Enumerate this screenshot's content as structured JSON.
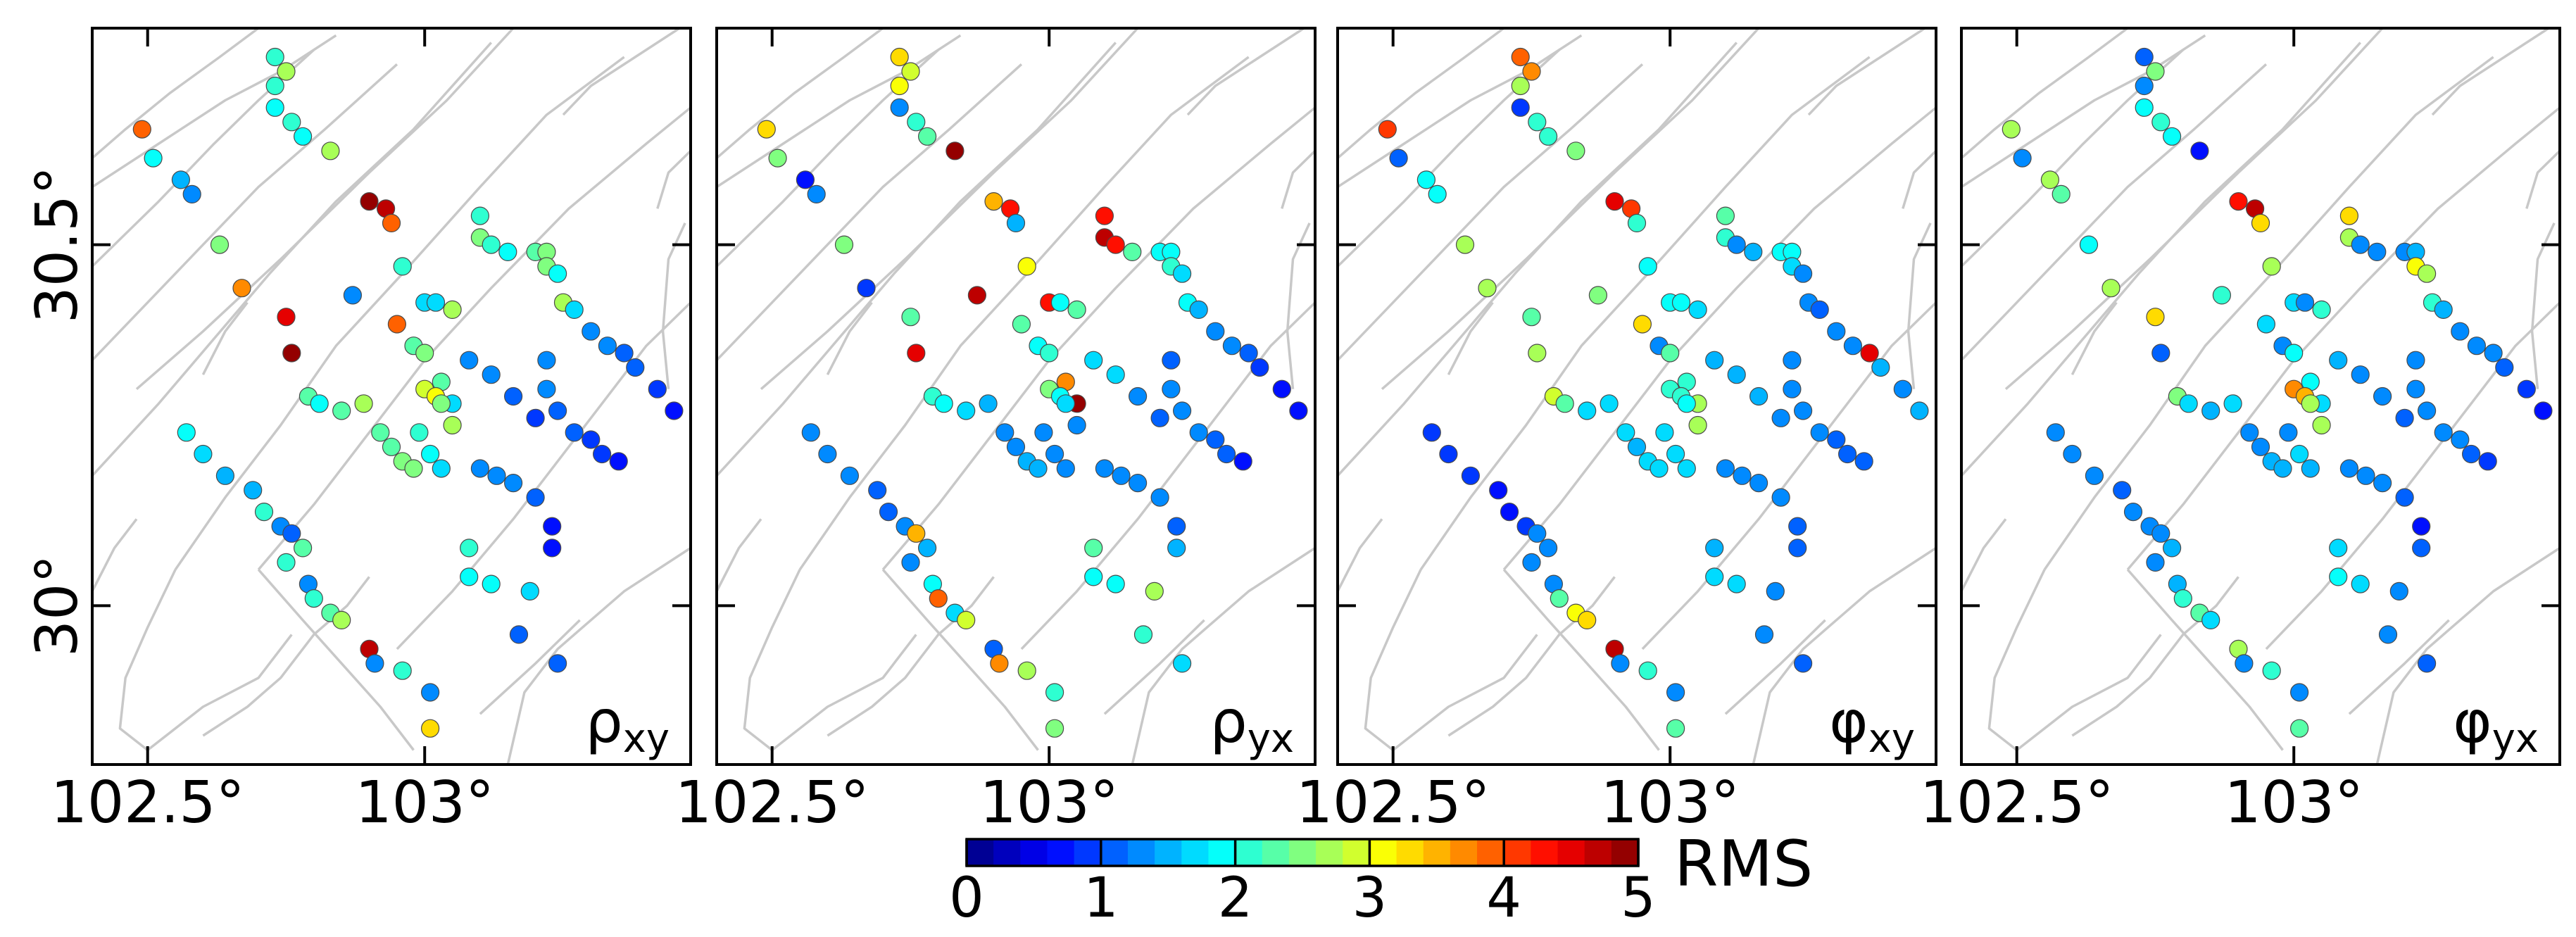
{
  "figure": {
    "panel_labels": [
      {
        "base": "ρ",
        "sub": "xy"
      },
      {
        "base": "ρ",
        "sub": "yx"
      },
      {
        "base": "φ",
        "sub": "xy"
      },
      {
        "base": "φ",
        "sub": "yx"
      }
    ]
  },
  "chart_data": {
    "type": "scatter",
    "title": "",
    "description_units": "station RMS misfit maps",
    "xlabel": "",
    "ylabel": "",
    "xlim": [
      102.4,
      103.48
    ],
    "ylim": [
      29.78,
      30.8
    ],
    "x_ticks": [
      102.5,
      103.0
    ],
    "x_tick_labels": [
      "102.5°",
      "103°"
    ],
    "y_ticks": [
      30.0,
      30.5
    ],
    "y_tick_labels": [
      "30°",
      "30.5°"
    ],
    "colorbar": {
      "label": "RMS",
      "range": [
        0,
        5
      ],
      "ticks": [
        0,
        1,
        2,
        3,
        4,
        5
      ],
      "tick_labels": [
        "0",
        "1",
        "2",
        "3",
        "4",
        "5"
      ],
      "steps": 25,
      "colormap": "jet"
    },
    "stations": [
      [
        102.73,
        30.76
      ],
      [
        102.75,
        30.74
      ],
      [
        102.73,
        30.72
      ],
      [
        102.73,
        30.69
      ],
      [
        102.76,
        30.67
      ],
      [
        102.78,
        30.65
      ],
      [
        102.49,
        30.66
      ],
      [
        102.51,
        30.62
      ],
      [
        102.56,
        30.59
      ],
      [
        102.58,
        30.57
      ],
      [
        102.63,
        30.5
      ],
      [
        102.67,
        30.44
      ],
      [
        102.75,
        30.4
      ],
      [
        102.76,
        30.35
      ],
      [
        102.79,
        30.29
      ],
      [
        102.81,
        30.28
      ],
      [
        102.85,
        30.27
      ],
      [
        102.89,
        30.28
      ],
      [
        102.92,
        30.24
      ],
      [
        102.94,
        30.22
      ],
      [
        102.96,
        30.2
      ],
      [
        102.98,
        30.19
      ],
      [
        102.83,
        30.63
      ],
      [
        102.9,
        30.56
      ],
      [
        102.93,
        30.55
      ],
      [
        102.94,
        30.53
      ],
      [
        102.96,
        30.47
      ],
      [
        102.87,
        30.43
      ],
      [
        102.95,
        30.39
      ],
      [
        103.0,
        30.42
      ],
      [
        103.02,
        30.42
      ],
      [
        103.05,
        30.41
      ],
      [
        102.98,
        30.36
      ],
      [
        103.0,
        30.35
      ],
      [
        103.03,
        30.31
      ],
      [
        103.05,
        30.28
      ],
      [
        103.1,
        30.54
      ],
      [
        103.1,
        30.51
      ],
      [
        103.12,
        30.5
      ],
      [
        103.15,
        30.49
      ],
      [
        103.2,
        30.49
      ],
      [
        103.22,
        30.49
      ],
      [
        103.22,
        30.47
      ],
      [
        103.24,
        30.46
      ],
      [
        103.25,
        30.42
      ],
      [
        103.27,
        30.41
      ],
      [
        103.3,
        30.38
      ],
      [
        103.33,
        30.36
      ],
      [
        103.36,
        30.35
      ],
      [
        103.38,
        30.33
      ],
      [
        103.42,
        30.3
      ],
      [
        103.45,
        30.27
      ],
      [
        103.0,
        30.3
      ],
      [
        103.02,
        30.29
      ],
      [
        103.03,
        30.28
      ],
      [
        103.05,
        30.25
      ],
      [
        102.99,
        30.24
      ],
      [
        103.01,
        30.21
      ],
      [
        103.03,
        30.19
      ],
      [
        103.1,
        30.19
      ],
      [
        103.13,
        30.18
      ],
      [
        103.16,
        30.17
      ],
      [
        103.2,
        30.15
      ],
      [
        103.23,
        30.11
      ],
      [
        103.08,
        30.34
      ],
      [
        103.12,
        30.32
      ],
      [
        103.16,
        30.29
      ],
      [
        103.2,
        30.26
      ],
      [
        103.22,
        30.34
      ],
      [
        103.22,
        30.3
      ],
      [
        103.24,
        30.27
      ],
      [
        103.27,
        30.24
      ],
      [
        103.3,
        30.23
      ],
      [
        103.32,
        30.21
      ],
      [
        103.35,
        30.2
      ],
      [
        102.57,
        30.24
      ],
      [
        102.6,
        30.21
      ],
      [
        102.64,
        30.18
      ],
      [
        102.69,
        30.16
      ],
      [
        102.71,
        30.13
      ],
      [
        102.74,
        30.11
      ],
      [
        102.76,
        30.1
      ],
      [
        102.78,
        30.08
      ],
      [
        102.75,
        30.06
      ],
      [
        102.79,
        30.03
      ],
      [
        102.8,
        30.01
      ],
      [
        102.83,
        29.99
      ],
      [
        102.85,
        29.98
      ],
      [
        102.9,
        29.94
      ],
      [
        102.91,
        29.92
      ],
      [
        102.96,
        29.91
      ],
      [
        103.01,
        29.88
      ],
      [
        103.01,
        29.83
      ],
      [
        103.08,
        30.08
      ],
      [
        103.08,
        30.04
      ],
      [
        103.12,
        30.03
      ],
      [
        103.19,
        30.02
      ],
      [
        103.23,
        30.08
      ],
      [
        103.17,
        29.96
      ],
      [
        103.24,
        29.92
      ]
    ],
    "series": [
      {
        "name": "ρxy",
        "rms": [
          2.0,
          2.6,
          2.0,
          1.9,
          2.1,
          1.9,
          3.8,
          1.8,
          1.5,
          1.3,
          2.4,
          3.6,
          4.4,
          4.8,
          2.2,
          1.9,
          2.3,
          2.6,
          2.2,
          2.2,
          2.5,
          2.4,
          2.6,
          4.8,
          4.6,
          3.9,
          2.0,
          1.3,
          3.8,
          1.7,
          1.6,
          2.6,
          2.3,
          2.5,
          2.2,
          1.6,
          2.1,
          2.5,
          2.0,
          1.9,
          2.3,
          2.5,
          2.4,
          1.8,
          2.6,
          1.6,
          1.3,
          1.2,
          1.1,
          1.0,
          0.8,
          0.6,
          2.9,
          3.1,
          2.4,
          2.8,
          2.0,
          1.8,
          1.6,
          1.4,
          1.4,
          1.3,
          1.0,
          0.7,
          1.2,
          1.2,
          1.1,
          0.9,
          1.2,
          1.4,
          1.1,
          1.1,
          0.9,
          0.8,
          0.6,
          1.9,
          1.6,
          1.5,
          1.5,
          2.0,
          1.4,
          1.0,
          2.2,
          2.1,
          1.3,
          2.0,
          2.3,
          2.7,
          4.6,
          1.3,
          2.0,
          1.3,
          3.3,
          2.0,
          1.9,
          1.8,
          1.6,
          0.6,
          1.0,
          1.0
        ]
      },
      {
        "name": "ρyx",
        "rms": [
          3.3,
          2.9,
          3.1,
          1.4,
          2.1,
          2.2,
          3.2,
          2.5,
          0.7,
          1.2,
          2.4,
          0.8,
          2.3,
          4.5,
          2.0,
          1.8,
          1.6,
          1.5,
          1.3,
          1.4,
          1.5,
          1.5,
          4.8,
          3.5,
          4.3,
          1.5,
          3.1,
          4.6,
          2.3,
          4.3,
          1.8,
          2.2,
          1.8,
          2.1,
          3.6,
          4.8,
          4.3,
          4.6,
          4.3,
          2.2,
          1.8,
          1.9,
          2.0,
          1.7,
          1.8,
          1.5,
          1.4,
          1.2,
          1.0,
          0.9,
          0.7,
          0.6,
          2.5,
          1.9,
          1.7,
          1.4,
          1.3,
          1.2,
          1.3,
          1.2,
          1.3,
          1.4,
          1.2,
          1.1,
          1.6,
          1.6,
          1.3,
          1.1,
          1.1,
          1.2,
          1.4,
          1.3,
          1.1,
          1.0,
          0.7,
          1.4,
          1.2,
          1.3,
          1.0,
          1.0,
          1.3,
          3.4,
          1.5,
          1.3,
          1.9,
          3.9,
          1.6,
          2.9,
          1.0,
          3.6,
          2.6,
          2.0,
          2.4,
          2.3,
          1.8,
          1.9,
          2.8,
          1.5,
          2.0,
          1.7
        ]
      },
      {
        "name": "φxy",
        "rms": [
          3.9,
          3.6,
          2.6,
          0.8,
          2.1,
          2.0,
          4.0,
          1.1,
          1.8,
          1.9,
          2.6,
          2.7,
          2.2,
          2.6,
          2.9,
          2.2,
          1.7,
          1.7,
          1.6,
          1.5,
          1.7,
          1.7,
          2.4,
          4.5,
          4.0,
          2.1,
          1.9,
          2.4,
          3.3,
          1.9,
          1.8,
          1.6,
          1.3,
          2.2,
          2.0,
          2.7,
          2.3,
          2.0,
          1.3,
          1.5,
          1.9,
          1.8,
          1.7,
          1.3,
          1.4,
          1.1,
          1.3,
          1.2,
          4.4,
          1.5,
          1.2,
          1.5,
          2.0,
          2.0,
          1.9,
          2.7,
          1.7,
          1.6,
          1.6,
          1.3,
          1.3,
          1.4,
          1.2,
          1.0,
          1.5,
          1.5,
          1.5,
          1.4,
          1.2,
          1.3,
          1.3,
          1.3,
          1.1,
          1.0,
          1.0,
          0.8,
          0.8,
          0.9,
          0.7,
          0.6,
          0.9,
          1.3,
          1.2,
          1.3,
          1.4,
          2.3,
          3.1,
          3.3,
          4.7,
          1.3,
          2.0,
          1.4,
          2.2,
          1.5,
          1.7,
          1.6,
          1.4,
          1.0,
          1.3,
          1.1
        ]
      },
      {
        "name": "φyx",
        "rms": [
          1.0,
          2.4,
          1.3,
          1.8,
          2.0,
          1.8,
          2.8,
          1.4,
          2.8,
          2.3,
          1.8,
          2.7,
          3.2,
          1.0,
          2.4,
          1.6,
          1.5,
          1.6,
          1.4,
          1.3,
          1.5,
          1.5,
          0.6,
          4.3,
          4.7,
          3.3,
          2.8,
          2.0,
          1.7,
          1.6,
          1.4,
          2.1,
          1.4,
          1.8,
          1.9,
          1.7,
          3.2,
          2.8,
          1.4,
          1.2,
          1.3,
          1.5,
          3.1,
          2.6,
          2.0,
          1.5,
          1.4,
          1.2,
          1.3,
          1.0,
          0.9,
          0.7,
          3.7,
          3.5,
          2.8,
          2.6,
          1.4,
          1.6,
          1.5,
          1.4,
          1.3,
          1.2,
          1.0,
          0.6,
          1.5,
          1.3,
          1.2,
          1.0,
          1.2,
          1.4,
          1.3,
          1.3,
          1.2,
          1.0,
          0.9,
          1.4,
          1.2,
          1.2,
          1.0,
          1.4,
          1.3,
          1.2,
          1.5,
          1.4,
          1.5,
          2.1,
          2.2,
          1.7,
          2.6,
          1.4,
          2.0,
          1.3,
          2.2,
          1.7,
          1.9,
          1.6,
          1.4,
          1.0,
          1.2,
          1.1
        ]
      }
    ],
    "faults": [
      [
        [
          102.4,
          30.62
        ],
        [
          102.46,
          30.66
        ],
        [
          102.54,
          30.71
        ],
        [
          102.63,
          30.76
        ],
        [
          102.7,
          30.8
        ]
      ],
      [
        [
          102.4,
          30.58
        ],
        [
          102.52,
          30.64
        ],
        [
          102.64,
          30.7
        ],
        [
          102.74,
          30.74
        ],
        [
          102.84,
          30.79
        ]
      ],
      [
        [
          102.4,
          30.47
        ],
        [
          102.52,
          30.56
        ],
        [
          102.62,
          30.64
        ],
        [
          102.7,
          30.7
        ],
        [
          102.8,
          30.77
        ]
      ],
      [
        [
          102.4,
          30.34
        ],
        [
          102.5,
          30.42
        ],
        [
          102.6,
          30.5
        ],
        [
          102.7,
          30.58
        ],
        [
          102.82,
          30.66
        ],
        [
          102.95,
          30.75
        ]
      ],
      [
        [
          102.4,
          30.18
        ],
        [
          102.52,
          30.28
        ],
        [
          102.62,
          30.37
        ],
        [
          102.72,
          30.46
        ],
        [
          102.84,
          30.56
        ],
        [
          102.98,
          30.66
        ],
        [
          103.12,
          30.78
        ]
      ],
      [
        [
          102.48,
          30.3
        ],
        [
          102.6,
          30.38
        ],
        [
          102.74,
          30.48
        ],
        [
          102.9,
          30.6
        ],
        [
          103.04,
          30.7
        ],
        [
          103.16,
          30.8
        ]
      ],
      [
        [
          102.55,
          30.05
        ],
        [
          102.64,
          30.15
        ],
        [
          102.74,
          30.25
        ],
        [
          102.84,
          30.36
        ],
        [
          102.96,
          30.46
        ],
        [
          103.1,
          30.58
        ],
        [
          103.22,
          30.68
        ],
        [
          103.36,
          30.76
        ]
      ],
      [
        [
          102.7,
          30.05
        ],
        [
          102.8,
          30.14
        ],
        [
          102.9,
          30.24
        ],
        [
          103.0,
          30.34
        ],
        [
          103.12,
          30.44
        ],
        [
          103.26,
          30.55
        ],
        [
          103.4,
          30.64
        ],
        [
          103.48,
          30.69
        ]
      ],
      [
        [
          102.95,
          29.94
        ],
        [
          103.05,
          30.02
        ],
        [
          103.16,
          30.12
        ],
        [
          103.28,
          30.24
        ],
        [
          103.4,
          30.36
        ],
        [
          103.48,
          30.42
        ]
      ],
      [
        [
          103.25,
          30.68
        ],
        [
          103.3,
          30.72
        ],
        [
          103.38,
          30.76
        ],
        [
          103.46,
          30.8
        ]
      ],
      [
        [
          103.42,
          30.55
        ],
        [
          103.44,
          30.6
        ],
        [
          103.48,
          30.63
        ]
      ],
      [
        [
          103.44,
          30.3
        ],
        [
          103.43,
          30.38
        ],
        [
          103.44,
          30.48
        ],
        [
          103.47,
          30.53
        ]
      ],
      [
        [
          102.7,
          30.05
        ],
        [
          102.78,
          29.98
        ],
        [
          102.85,
          29.92
        ],
        [
          102.92,
          29.86
        ],
        [
          102.98,
          29.8
        ]
      ],
      [
        [
          102.55,
          30.05
        ],
        [
          102.5,
          29.97
        ],
        [
          102.46,
          29.9
        ],
        [
          102.45,
          29.83
        ],
        [
          102.5,
          29.8
        ],
        [
          102.6,
          29.86
        ],
        [
          102.7,
          29.9
        ],
        [
          102.76,
          29.96
        ]
      ],
      [
        [
          102.6,
          29.82
        ],
        [
          102.68,
          29.86
        ],
        [
          102.74,
          29.9
        ],
        [
          102.8,
          29.96
        ],
        [
          102.86,
          30.0
        ],
        [
          102.9,
          30.04
        ]
      ],
      [
        [
          102.4,
          30.02
        ],
        [
          102.44,
          30.08
        ],
        [
          102.48,
          30.12
        ]
      ],
      [
        [
          103.15,
          29.78
        ],
        [
          103.18,
          29.88
        ],
        [
          103.24,
          29.94
        ],
        [
          103.3,
          29.98
        ],
        [
          103.36,
          30.02
        ],
        [
          103.42,
          30.05
        ],
        [
          103.48,
          30.08
        ]
      ],
      [
        [
          103.1,
          29.85
        ],
        [
          103.2,
          29.92
        ],
        [
          103.28,
          29.98
        ]
      ],
      [
        [
          102.6,
          30.32
        ],
        [
          102.64,
          30.38
        ],
        [
          102.68,
          30.42
        ]
      ]
    ]
  }
}
